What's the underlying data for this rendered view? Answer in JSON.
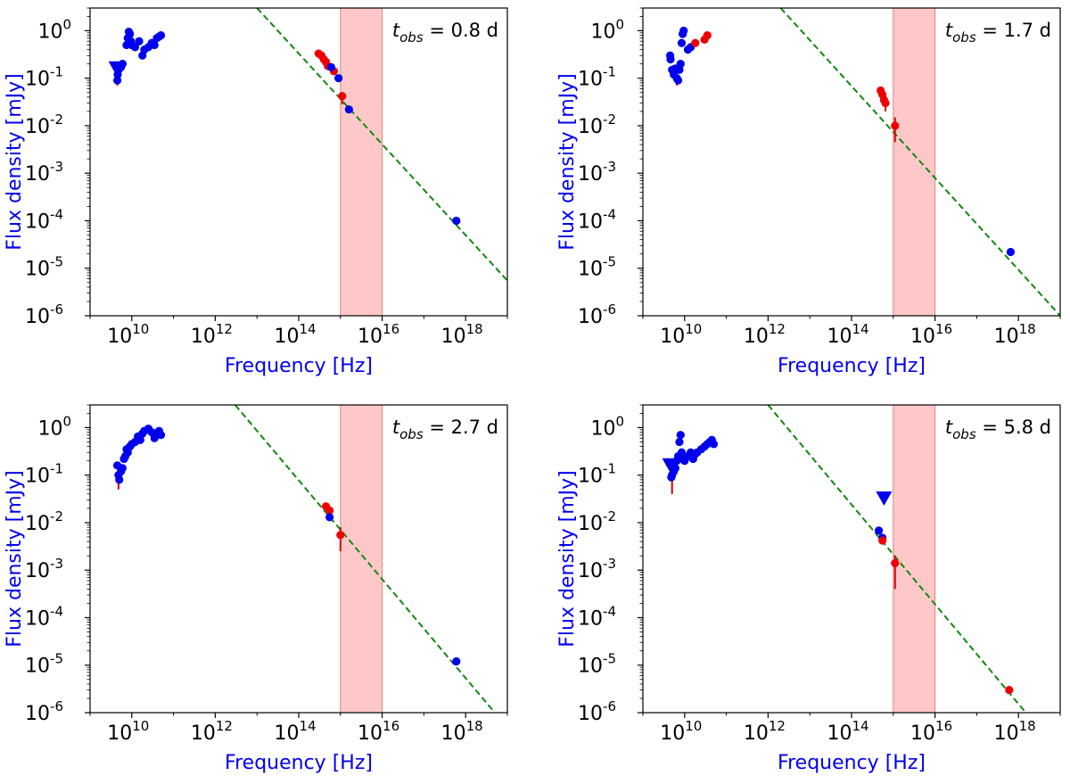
{
  "chart_data": [
    {
      "type": "scatter",
      "annotation": "t_obs = 0.8 d",
      "annotation_parts": {
        "t": "t",
        "sub": "obs",
        "rest": " = 0.8 d"
      },
      "xlabel": "Frequency [Hz]",
      "ylabel": "Flux density [mJy]",
      "xscale": "log",
      "yscale": "log",
      "xlim": [
        1000000000.0,
        1e+19
      ],
      "ylim": [
        1e-06,
        3
      ],
      "xtick_exponents": [
        10,
        12,
        14,
        16,
        18
      ],
      "ytick_exponents": [
        -6,
        -5,
        -4,
        -3,
        -2,
        -1,
        0
      ],
      "shaded_band": {
        "x_from": 1000000000000000.0,
        "x_to": 1e+16,
        "color": "#ffb0b0"
      },
      "fit_line": {
        "points": [
          [
            10000000000000.0,
            3
          ],
          [
            1e+19,
            5.5e-06
          ]
        ],
        "color": "#118811",
        "style": "dashed"
      },
      "series": [
        {
          "name": "radio",
          "color": "#0000ee",
          "points": [
            [
              4500000000.0,
              0.09
            ],
            [
              4600000000.0,
              0.12
            ],
            [
              4800000000.0,
              0.15
            ],
            [
              5500000000.0,
              0.17
            ],
            [
              6000000000.0,
              0.2
            ],
            [
              7500000000.0,
              0.5
            ],
            [
              8000000000.0,
              0.7
            ],
            [
              8500000000.0,
              0.95
            ],
            [
              9000000000.0,
              0.85
            ],
            [
              9500000000.0,
              0.6
            ],
            [
              10000000000.0,
              0.5
            ],
            [
              12000000000.0,
              0.45
            ],
            [
              15000000000.0,
              0.6
            ],
            [
              18000000000.0,
              0.3
            ],
            [
              20000000000.0,
              0.4
            ],
            [
              25000000000.0,
              0.45
            ],
            [
              30000000000.0,
              0.55
            ],
            [
              35000000000.0,
              0.5
            ],
            [
              40000000000.0,
              0.7
            ],
            [
              45000000000.0,
              0.75
            ],
            [
              50000000000.0,
              0.8
            ]
          ]
        },
        {
          "name": "optical",
          "color": "#ee0000",
          "points": [
            [
              300000000000000.0,
              0.33
            ],
            [
              350000000000000.0,
              0.3
            ],
            [
              400000000000000.0,
              0.25
            ],
            [
              450000000000000.0,
              0.22
            ],
            [
              500000000000000.0,
              0.18
            ],
            [
              700000000000000.0,
              0.14
            ],
            [
              1100000000000000.0,
              0.042
            ]
          ]
        },
        {
          "name": "optical-blue",
          "color": "#0000ee",
          "points": [
            [
              600000000000000.0,
              0.17
            ],
            [
              900000000000000.0,
              0.1
            ],
            [
              1600000000000000.0,
              0.022
            ]
          ]
        },
        {
          "name": "xray",
          "color": "#0000ee",
          "points": [
            [
              6e+17,
              0.0001
            ]
          ]
        }
      ],
      "error_bars": [
        {
          "x": 4500000000.0,
          "lo": 0.07,
          "hi": 0.11
        },
        {
          "x": 1100000000000000.0,
          "lo": 0.028,
          "hi": 0.05
        }
      ],
      "upper_limits": [
        {
          "x": 4300000000.0,
          "y": 0.16,
          "color": "#0000ee"
        }
      ]
    },
    {
      "type": "scatter",
      "annotation": "t_obs = 1.7 d",
      "annotation_parts": {
        "t": "t",
        "sub": "obs",
        "rest": " = 1.7 d"
      },
      "xlabel": "Frequency [Hz]",
      "ylabel": "Flux density [mJy]",
      "xscale": "log",
      "yscale": "log",
      "xlim": [
        1000000000.0,
        1e+19
      ],
      "ylim": [
        1e-06,
        3
      ],
      "xtick_exponents": [
        10,
        12,
        14,
        16,
        18
      ],
      "ytick_exponents": [
        -6,
        -5,
        -4,
        -3,
        -2,
        -1,
        0
      ],
      "shaded_band": {
        "x_from": 1000000000000000.0,
        "x_to": 1e+16,
        "color": "#ffb0b0"
      },
      "fit_line": {
        "points": [
          [
            2000000000000.0,
            3
          ],
          [
            1e+19,
            1e-06
          ]
        ],
        "color": "#118811",
        "style": "dashed"
      },
      "series": [
        {
          "name": "radio",
          "color": "#0000ee",
          "points": [
            [
              4500000000.0,
              0.3
            ],
            [
              4600000000.0,
              0.25
            ],
            [
              5000000000.0,
              0.15
            ],
            [
              5500000000.0,
              0.12
            ],
            [
              6000000000.0,
              0.16
            ],
            [
              6500000000.0,
              0.1
            ],
            [
              7000000000.0,
              0.09
            ],
            [
              7500000000.0,
              0.15
            ],
            [
              8000000000.0,
              0.2
            ],
            [
              8500000000.0,
              0.55
            ],
            [
              9000000000.0,
              0.85
            ],
            [
              9500000000.0,
              1.0
            ],
            [
              12000000000.0,
              0.4
            ],
            [
              14000000000.0,
              0.45
            ]
          ]
        },
        {
          "name": "radio-red",
          "color": "#ee0000",
          "points": [
            [
              18000000000.0,
              0.55
            ],
            [
              30000000000.0,
              0.65
            ],
            [
              35000000000.0,
              0.8
            ]
          ]
        },
        {
          "name": "optical",
          "color": "#ee0000",
          "points": [
            [
              500000000000000.0,
              0.055
            ],
            [
              550000000000000.0,
              0.045
            ],
            [
              600000000000000.0,
              0.035
            ],
            [
              650000000000000.0,
              0.03
            ],
            [
              1100000000000000.0,
              0.01
            ]
          ]
        },
        {
          "name": "xray",
          "color": "#0000ee",
          "points": [
            [
              6.5e+17,
              2.2e-05
            ]
          ]
        }
      ],
      "error_bars": [
        {
          "x": 6500000000.0,
          "lo": 0.07,
          "hi": 0.12
        },
        {
          "x": 1100000000000000.0,
          "lo": 0.0045,
          "hi": 0.015
        },
        {
          "x": 650000000000000.0,
          "lo": 0.02,
          "hi": 0.035
        }
      ],
      "upper_limits": []
    },
    {
      "type": "scatter",
      "annotation": "t_obs = 2.7 d",
      "annotation_parts": {
        "t": "t",
        "sub": "obs",
        "rest": " = 2.7 d"
      },
      "xlabel": "Frequency [Hz]",
      "ylabel": "Flux density [mJy]",
      "xscale": "log",
      "yscale": "log",
      "xlim": [
        1000000000.0,
        1e+19
      ],
      "ylim": [
        1e-06,
        3
      ],
      "xtick_exponents": [
        10,
        12,
        14,
        16,
        18
      ],
      "ytick_exponents": [
        -6,
        -5,
        -4,
        -3,
        -2,
        -1,
        0
      ],
      "shaded_band": {
        "x_from": 1000000000000000.0,
        "x_to": 1e+16,
        "color": "#ffb0b0"
      },
      "fit_line": {
        "points": [
          [
            3000000000000.0,
            3
          ],
          [
            5e+18,
            1e-06
          ]
        ],
        "color": "#118811",
        "style": "dashed"
      },
      "series": [
        {
          "name": "radio",
          "color": "#0000ee",
          "points": [
            [
              4500000000.0,
              0.16
            ],
            [
              4800000000.0,
              0.1
            ],
            [
              5000000000.0,
              0.08
            ],
            [
              5500000000.0,
              0.12
            ],
            [
              6000000000.0,
              0.14
            ],
            [
              6500000000.0,
              0.22
            ],
            [
              7000000000.0,
              0.25
            ],
            [
              7500000000.0,
              0.35
            ],
            [
              8000000000.0,
              0.3
            ],
            [
              9000000000.0,
              0.4
            ],
            [
              10000000000.0,
              0.45
            ],
            [
              12000000000.0,
              0.5
            ],
            [
              14000000000.0,
              0.65
            ],
            [
              16000000000.0,
              0.55
            ],
            [
              18000000000.0,
              0.75
            ],
            [
              20000000000.0,
              0.85
            ],
            [
              25000000000.0,
              0.95
            ],
            [
              30000000000.0,
              0.8
            ],
            [
              35000000000.0,
              0.6
            ],
            [
              40000000000.0,
              0.75
            ],
            [
              45000000000.0,
              0.85
            ],
            [
              50000000000.0,
              0.7
            ]
          ]
        },
        {
          "name": "optical",
          "color": "#ee0000",
          "points": [
            [
              450000000000000.0,
              0.022
            ],
            [
              550000000000000.0,
              0.018
            ],
            [
              1000000000000000.0,
              0.0055
            ]
          ]
        },
        {
          "name": "optical-blue",
          "color": "#0000ee",
          "points": [
            [
              550000000000000.0,
              0.013
            ]
          ]
        },
        {
          "name": "xray",
          "color": "#0000ee",
          "points": [
            [
              6e+17,
              1.2e-05
            ]
          ]
        }
      ],
      "error_bars": [
        {
          "x": 4800000000.0,
          "lo": 0.05,
          "hi": 0.1
        },
        {
          "x": 1000000000000000.0,
          "lo": 0.0025,
          "hi": 0.008
        }
      ],
      "upper_limits": []
    },
    {
      "type": "scatter",
      "annotation": "t_obs = 5.8 d",
      "annotation_parts": {
        "t": "t",
        "sub": "obs",
        "rest": " = 5.8 d"
      },
      "xlabel": "Frequency [Hz]",
      "ylabel": "Flux density [mJy]",
      "xscale": "log",
      "yscale": "log",
      "xlim": [
        1000000000.0,
        1e+19
      ],
      "ylim": [
        1e-06,
        3
      ],
      "xtick_exponents": [
        10,
        12,
        14,
        16,
        18
      ],
      "ytick_exponents": [
        -6,
        -5,
        -4,
        -3,
        -2,
        -1,
        0
      ],
      "shaded_band": {
        "x_from": 1000000000000000.0,
        "x_to": 1e+16,
        "color": "#ffb0b0"
      },
      "fit_line": {
        "points": [
          [
            1000000000000.0,
            3
          ],
          [
            1.5e+18,
            1e-06
          ]
        ],
        "color": "#118811",
        "style": "dashed"
      },
      "series": [
        {
          "name": "radio",
          "color": "#0000ee",
          "points": [
            [
              4800000000.0,
              0.09
            ],
            [
              5000000000.0,
              0.1
            ],
            [
              5500000000.0,
              0.12
            ],
            [
              6000000000.0,
              0.14
            ],
            [
              6500000000.0,
              0.2
            ],
            [
              7000000000.0,
              0.25
            ],
            [
              7500000000.0,
              0.5
            ],
            [
              8000000000.0,
              0.7
            ],
            [
              8500000000.0,
              0.3
            ],
            [
              9000000000.0,
              0.22
            ],
            [
              10000000000.0,
              0.2
            ],
            [
              12000000000.0,
              0.25
            ],
            [
              14000000000.0,
              0.3
            ],
            [
              16000000000.0,
              0.22
            ],
            [
              18000000000.0,
              0.28
            ],
            [
              20000000000.0,
              0.3
            ],
            [
              25000000000.0,
              0.35
            ],
            [
              30000000000.0,
              0.4
            ],
            [
              35000000000.0,
              0.45
            ],
            [
              40000000000.0,
              0.5
            ],
            [
              45000000000.0,
              0.55
            ],
            [
              50000000000.0,
              0.45
            ]
          ]
        },
        {
          "name": "optical-blue",
          "color": "#0000ee",
          "points": [
            [
              450000000000000.0,
              0.0068
            ],
            [
              550000000000000.0,
              0.0048
            ]
          ]
        },
        {
          "name": "optical",
          "color": "#ee0000",
          "points": [
            [
              550000000000000.0,
              0.0042
            ],
            [
              1100000000000000.0,
              0.0014
            ]
          ]
        },
        {
          "name": "xray",
          "color": "#ee0000",
          "points": [
            [
              6e+17,
              3e-06
            ]
          ]
        }
      ],
      "error_bars": [
        {
          "x": 5000000000.0,
          "lo": 0.04,
          "hi": 0.1
        },
        {
          "x": 1100000000000000.0,
          "lo": 0.0004,
          "hi": 0.002
        }
      ],
      "upper_limits": [
        {
          "x": 4500000000.0,
          "y": 0.16,
          "color": "#0000ee"
        },
        {
          "x": 600000000000000.0,
          "y": 0.032,
          "color": "#0000ee"
        }
      ]
    }
  ]
}
